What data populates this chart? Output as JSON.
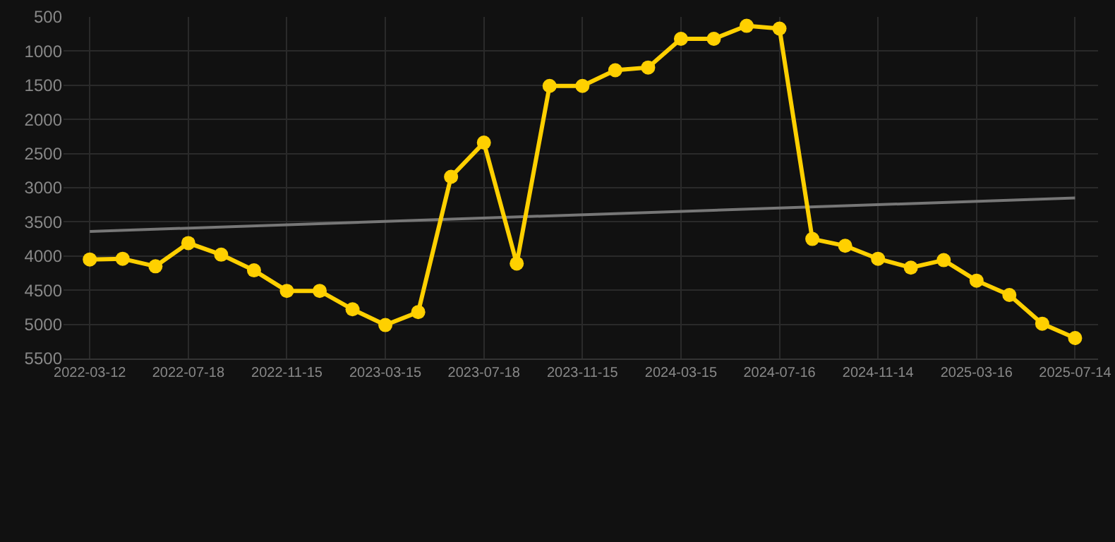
{
  "chart_data": {
    "type": "line",
    "categories": [
      "2022-03-12",
      null,
      null,
      "2022-07-18",
      null,
      null,
      "2022-11-15",
      null,
      null,
      "2023-03-15",
      null,
      null,
      "2023-07-18",
      null,
      null,
      "2023-11-15",
      null,
      null,
      "2024-03-15",
      null,
      null,
      "2024-07-16",
      null,
      null,
      "2024-11-14",
      null,
      null,
      "2025-03-16",
      null,
      null,
      "2025-07-14"
    ],
    "series": [
      {
        "color": "#ffd000",
        "marker": "circle",
        "values": [
          4050,
          4040,
          4150,
          3810,
          3980,
          4210,
          4510,
          4510,
          4780,
          5010,
          4820,
          2840,
          2340,
          4110,
          1510,
          1510,
          1280,
          1240,
          820,
          820,
          630,
          670,
          3750,
          3850,
          4040,
          4170,
          4060,
          4360,
          4570,
          4990,
          5200
        ]
      },
      {
        "color": "#777777",
        "marker": "none",
        "values": [
          3640,
          null,
          null,
          null,
          null,
          null,
          null,
          null,
          null,
          null,
          null,
          null,
          null,
          null,
          null,
          null,
          null,
          null,
          null,
          null,
          null,
          null,
          null,
          null,
          null,
          null,
          null,
          null,
          null,
          null,
          3150
        ]
      }
    ],
    "ylim": [
      5500,
      500
    ],
    "yticks": [
      500,
      1000,
      1500,
      2000,
      2500,
      3000,
      3500,
      4000,
      4500,
      5000,
      5500
    ],
    "grid": true
  }
}
